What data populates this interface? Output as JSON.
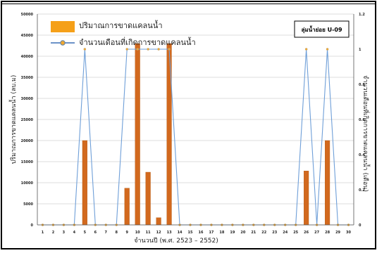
{
  "chart_data": {
    "type": "bar",
    "categories": [
      "1",
      "2",
      "3",
      "4",
      "5",
      "6",
      "7",
      "8",
      "9",
      "10",
      "11",
      "12",
      "13",
      "14",
      "15",
      "16",
      "17",
      "18",
      "19",
      "20",
      "21",
      "22",
      "23",
      "24",
      "25",
      "26",
      "27",
      "28",
      "29",
      "30"
    ],
    "series": [
      {
        "name": "ปริมาณการขาดแคลนน้ำ",
        "kind": "bar",
        "axis": "left",
        "color": "#d2691e",
        "values": [
          0,
          0,
          0,
          0,
          20000,
          0,
          0,
          0,
          8700,
          43000,
          12500,
          1700,
          43000,
          0,
          0,
          0,
          0,
          0,
          0,
          0,
          0,
          0,
          0,
          0,
          0,
          12800,
          0,
          20000,
          0,
          0
        ]
      },
      {
        "name": "จำนวนเดือนที่เกิดการขาดแคลนน้ำ",
        "kind": "line",
        "axis": "right",
        "color": "#6f9fd8",
        "marker_color": "#f0a830",
        "values": [
          0,
          0,
          0,
          0,
          1,
          0,
          0,
          0,
          1,
          1,
          1,
          1,
          1,
          0,
          0,
          0,
          0,
          0,
          0,
          0,
          0,
          0,
          0,
          0,
          0,
          1,
          0,
          1,
          0,
          0
        ]
      }
    ],
    "y_left": {
      "ylim": [
        0,
        50000
      ],
      "ticks": [
        "0",
        "5000",
        "10000",
        "15000",
        "20000",
        "25000",
        "30000",
        "35000",
        "40000",
        "45000",
        "50000"
      ],
      "label": "ปริมาณการขาดแคลนน้ำ (ลบ.ม)"
    },
    "y_right": {
      "ylim": [
        0,
        1.2
      ],
      "ticks": [
        "0",
        "0.2",
        "0.4",
        "0.6",
        "0.8",
        "1",
        "1.2"
      ],
      "label": "จำนวนเดือนที่เกิดการขาดแคลนน้ำ (เดือน)"
    },
    "xlabel": "จำนวนปี (พ.ศ. 2523 – 2552)",
    "subbasin_label": "ลุ่มน้ำย่อย U-09",
    "grid": "horizontal",
    "legend_position": "top-left"
  }
}
